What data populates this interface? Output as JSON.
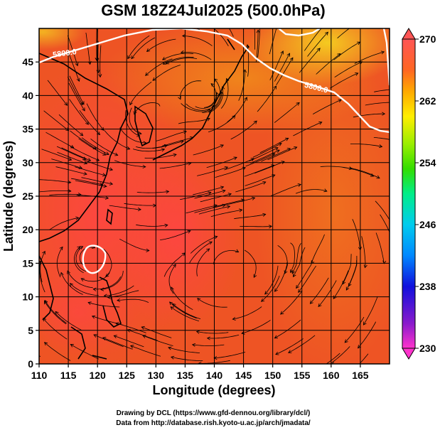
{
  "title": "GSM 18Z24Jul2025 (500.0hPa)",
  "x_axis": {
    "label": "Longitude (degrees)",
    "ticks": [
      "110",
      "115",
      "120",
      "125",
      "130",
      "135",
      "140",
      "145",
      "150",
      "155",
      "160",
      "165"
    ],
    "range": [
      110,
      170
    ]
  },
  "y_axis": {
    "label": "Latitude  (degrees)",
    "ticks": [
      "0",
      "5",
      "10",
      "15",
      "20",
      "25",
      "30",
      "35",
      "40",
      "45"
    ],
    "range": [
      0,
      50
    ]
  },
  "colorbar": {
    "ticks": [
      "270",
      "262",
      "254",
      "246",
      "238",
      "230"
    ],
    "range": [
      230,
      270
    ],
    "colors": [
      "#ff33cc",
      "#6600cc",
      "#0000ff",
      "#0099ff",
      "#00ccff",
      "#00ff99",
      "#33ff00",
      "#99ff00",
      "#ffff00",
      "#ffcc00",
      "#ff9900",
      "#ff6600",
      "#ff3300",
      "#ff5555"
    ]
  },
  "contour_label_1": "5800.0",
  "contour_label_2": "5800.0",
  "credit_line_1": "Drawing by DCL (https://www.gfd-dennou.org/library/dcl/)",
  "credit_line_2": "Data from http://database.rish.kyoto-u.ac.jp/arch/jmadata/",
  "map_features": {
    "field_colors": {
      "warm": "#f04a3a",
      "mid": "#ee5a24",
      "cool": "#f08a1a",
      "coolest": "#f5c820"
    },
    "coastline_color": "#000000",
    "contour_color": "#ffffff",
    "streamline_color": "#000000",
    "grid_interval_degrees": 5
  }
}
